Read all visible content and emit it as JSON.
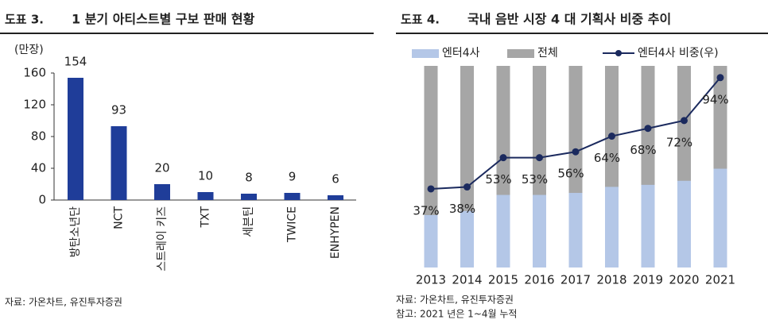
{
  "chart_data": [
    {
      "type": "bar",
      "label": "도표 3.",
      "title": "1 분기 아티스트별 구보 판매 현황",
      "y_label": "(만장)",
      "categories": [
        "방탄소년단",
        "NCT",
        "스트레이 키즈",
        "TXT",
        "세븐틴",
        "TWICE",
        "ENHYPEN"
      ],
      "values": [
        154,
        93,
        20,
        10,
        8,
        9,
        6
      ],
      "color": "#1f3d99",
      "ylim": [
        0,
        160
      ],
      "yticks": [
        0,
        40,
        80,
        120,
        160
      ],
      "source": "자료: 가온차트, 유진투자증권"
    },
    {
      "type": "bar_line",
      "label": "도표 4.",
      "title": "국내 음반 시장 4 대 기획사 비중 추이",
      "categories": [
        "2013",
        "2014",
        "2015",
        "2016",
        "2017",
        "2018",
        "2019",
        "2020",
        "2021"
      ],
      "series": [
        {
          "name": "엔터4사",
          "color": "#b4c7e7",
          "values": [
            26,
            28,
            36,
            36,
            37,
            40,
            41,
            43,
            49
          ]
        },
        {
          "name": "전체",
          "color": "#a6a6a6",
          "values": [
            100,
            100,
            100,
            100,
            100,
            100,
            100,
            100,
            100
          ]
        },
        {
          "name": "엔터4사 비중(우)",
          "color": "#1b2a5e",
          "axis": "y2",
          "values": [
            37,
            38,
            53,
            53,
            56,
            64,
            68,
            72,
            94
          ],
          "value_labels": [
            "37%",
            "38%",
            "53%",
            "53%",
            "56%",
            "64%",
            "68%",
            "72%",
            "94%"
          ]
        }
      ],
      "ylim": [
        0,
        100
      ],
      "y2lim": [
        0,
        100
      ],
      "source": "자료: 가온차트, 유진투자증권",
      "note": "참고: 2021 년은 1~4월 누적"
    }
  ]
}
